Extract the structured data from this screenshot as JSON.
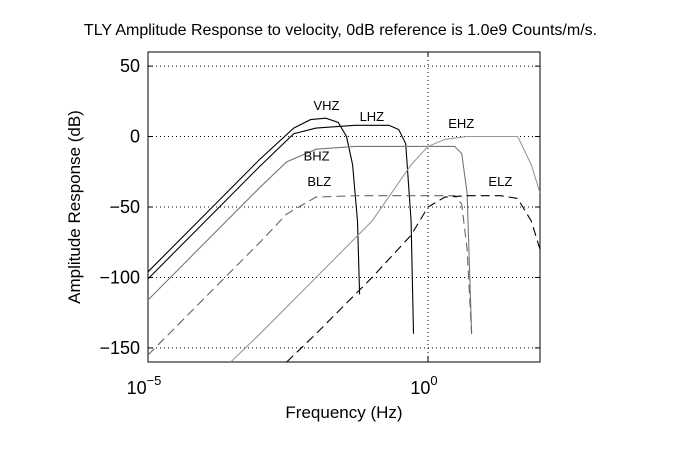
{
  "chart_data": {
    "type": "line",
    "title": "TLY Amplitude Response to velocity, 0dB reference is 1.0e9 Counts/m/s.",
    "xlabel": "Frequency (Hz)",
    "ylabel": "Amplitude Response (dB)",
    "x_scale": "log",
    "xlim": [
      1e-05,
      100
    ],
    "ylim": [
      -160,
      60
    ],
    "grid": true,
    "x_ticks": [
      1e-05,
      1
    ],
    "x_tick_labels": [
      {
        "base": "10",
        "exp": "−5"
      },
      {
        "base": "10",
        "exp": "0"
      }
    ],
    "y_ticks": [
      50,
      0,
      -50,
      -100,
      -150
    ],
    "y_tick_labels": [
      "50",
      "0",
      "−50",
      "−100",
      "−150"
    ],
    "series": [
      {
        "name": "VHZ",
        "color": "#000000",
        "dash": "solid",
        "points": [
          [
            1e-05,
            -96
          ],
          [
            0.0001,
            -56
          ],
          [
            0.001,
            -16
          ],
          [
            0.004,
            6
          ],
          [
            0.008,
            12
          ],
          [
            0.015,
            13
          ],
          [
            0.025,
            10
          ],
          [
            0.035,
            0
          ],
          [
            0.045,
            -20
          ],
          [
            0.055,
            -60
          ],
          [
            0.06,
            -112
          ]
        ],
        "label_at": [
          0.009,
          19
        ]
      },
      {
        "name": "LHZ",
        "color": "#000000",
        "dash": "solid",
        "points": [
          [
            1e-05,
            -101
          ],
          [
            0.0001,
            -61
          ],
          [
            0.001,
            -21
          ],
          [
            0.004,
            2
          ],
          [
            0.01,
            6
          ],
          [
            0.05,
            8
          ],
          [
            0.2,
            8
          ],
          [
            0.3,
            5
          ],
          [
            0.4,
            -5
          ],
          [
            0.5,
            -60
          ],
          [
            0.55,
            -140
          ]
        ],
        "label_at": [
          0.06,
          11
        ]
      },
      {
        "name": "BHZ",
        "color": "#777777",
        "dash": "solid",
        "points": [
          [
            1e-05,
            -116
          ],
          [
            0.0001,
            -76
          ],
          [
            0.001,
            -36
          ],
          [
            0.003,
            -18
          ],
          [
            0.01,
            -9
          ],
          [
            0.05,
            -7
          ],
          [
            1,
            -7
          ],
          [
            3,
            -7
          ],
          [
            4,
            -12
          ],
          [
            5,
            -40
          ],
          [
            6,
            -140
          ]
        ],
        "label_at": [
          0.006,
          -17
        ]
      },
      {
        "name": "EHZ",
        "color": "#999999",
        "dash": "solid",
        "points": [
          [
            0.0003,
            -160
          ],
          [
            0.001,
            -140
          ],
          [
            0.01,
            -100
          ],
          [
            0.1,
            -60
          ],
          [
            0.5,
            -20
          ],
          [
            1,
            -7
          ],
          [
            2,
            -2
          ],
          [
            5,
            0
          ],
          [
            20,
            0
          ],
          [
            40,
            0
          ],
          [
            70,
            -20
          ],
          [
            100,
            -40
          ]
        ],
        "label_at": [
          2.3,
          6
        ]
      },
      {
        "name": "BLZ",
        "color": "#666666",
        "dash": "dashed",
        "points": [
          [
            1e-05,
            -155
          ],
          [
            0.0001,
            -115
          ],
          [
            0.001,
            -75
          ],
          [
            0.003,
            -55
          ],
          [
            0.01,
            -43
          ],
          [
            0.05,
            -42
          ],
          [
            1,
            -42
          ],
          [
            3,
            -42
          ],
          [
            4,
            -48
          ],
          [
            5,
            -80
          ],
          [
            6,
            -140
          ]
        ],
        "label_at": [
          0.007,
          -35
        ]
      },
      {
        "name": "ELZ",
        "color": "#000000",
        "dash": "dashed",
        "points": [
          [
            0.003,
            -160
          ],
          [
            0.01,
            -140
          ],
          [
            0.1,
            -100
          ],
          [
            0.5,
            -70
          ],
          [
            1,
            -50
          ],
          [
            2,
            -43
          ],
          [
            5,
            -42
          ],
          [
            20,
            -42
          ],
          [
            40,
            -44
          ],
          [
            70,
            -60
          ],
          [
            100,
            -80
          ]
        ],
        "label_at": [
          12,
          -35
        ]
      }
    ]
  }
}
